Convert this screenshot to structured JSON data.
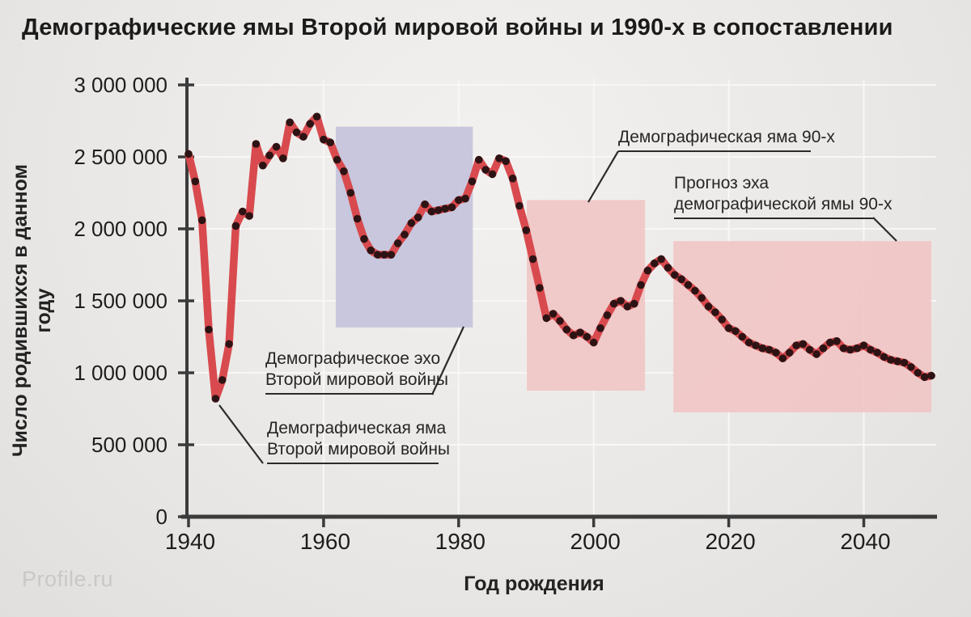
{
  "title": "Демографические ямы Второй мировой войны и 1990-х в сопоставлении",
  "watermark": "Profile.ru",
  "chart_data": {
    "type": "line",
    "title": "Демографические ямы Второй мировой войны и 1990-х в сопоставлении",
    "xlabel": "Год рождения",
    "ylabel": "Число родившихся в данном году",
    "grid": true,
    "legend_position": "none",
    "xlim": [
      1940,
      2050
    ],
    "ylim": [
      0,
      3000000
    ],
    "line_color": "#d84a4e",
    "dot_color": "#2e1314",
    "axis_color": "#3b3b3b",
    "grid_color": "#f8f7f6",
    "x_ticks": [
      {
        "value": 1940,
        "label": "1940"
      },
      {
        "value": 1960,
        "label": "1960"
      },
      {
        "value": 1980,
        "label": "1980"
      },
      {
        "value": 2000,
        "label": "2000"
      },
      {
        "value": 2020,
        "label": "2020"
      },
      {
        "value": 2040,
        "label": "2040"
      }
    ],
    "y_ticks": [
      {
        "value": 0,
        "label": "0"
      },
      {
        "value": 500000,
        "label": "500 000"
      },
      {
        "value": 1000000,
        "label": "1 000 000"
      },
      {
        "value": 1500000,
        "label": "1 500 000"
      },
      {
        "value": 2000000,
        "label": "2 000 000"
      },
      {
        "value": 2500000,
        "label": "2 500 000"
      },
      {
        "value": 3000000,
        "label": "3 000 000"
      }
    ],
    "regions": [
      {
        "name": "echo-wwii-box",
        "x0": 1961.8,
        "x1": 1982.1,
        "y0": 1315000,
        "y1": 2710000,
        "color": "#c4c3db"
      },
      {
        "name": "pit-90s-box",
        "x0": 1990.1,
        "x1": 2007.6,
        "y0": 876000,
        "y1": 2200000,
        "color": "#f0c5c6"
      },
      {
        "name": "forecast-echo-90s-box",
        "x0": 2011.8,
        "x1": 2050.0,
        "y0": 725000,
        "y1": 1915000,
        "color": "#f0c5c6"
      }
    ],
    "annotations": [
      {
        "id": "echo_wwii",
        "line1": "Демографическое эхо",
        "line2": "Второй мировой войны",
        "leader": [
          [
            534,
            488
          ],
          [
            573,
            404
          ]
        ]
      },
      {
        "id": "pit_wwii",
        "line1": "Демографическая яма",
        "line2": "Второй мировой войны",
        "leader": [
          [
            325,
            573
          ],
          [
            271,
            501
          ]
        ]
      },
      {
        "id": "pit_90s",
        "line1": "Демографическая яма 90-х",
        "line2": "",
        "leader": [
          [
            764,
            187
          ],
          [
            727,
            250
          ]
        ]
      },
      {
        "id": "forecast_90s",
        "line1": "Прогноз эха",
        "line2": "демографической ямы 90-х",
        "leader": [
          [
            1079,
            269
          ],
          [
            1108,
            298
          ]
        ]
      }
    ],
    "x": [
      1940,
      1941,
      1942,
      1943,
      1944,
      1945,
      1946,
      1947,
      1948,
      1949,
      1950,
      1951,
      1952,
      1953,
      1954,
      1955,
      1956,
      1957,
      1958,
      1959,
      1960,
      1961,
      1962,
      1963,
      1964,
      1965,
      1966,
      1967,
      1968,
      1969,
      1970,
      1971,
      1972,
      1973,
      1974,
      1975,
      1976,
      1977,
      1978,
      1979,
      1980,
      1981,
      1982,
      1983,
      1984,
      1985,
      1986,
      1987,
      1988,
      1989,
      1990,
      1991,
      1992,
      1993,
      1994,
      1995,
      1996,
      1997,
      1998,
      1999,
      2000,
      2001,
      2002,
      2003,
      2004,
      2005,
      2006,
      2007,
      2008,
      2009,
      2010,
      2011,
      2012,
      2013,
      2014,
      2015,
      2016,
      2017,
      2018,
      2019,
      2020,
      2021,
      2022,
      2023,
      2024,
      2025,
      2026,
      2027,
      2028,
      2029,
      2030,
      2031,
      2032,
      2033,
      2034,
      2035,
      2036,
      2037,
      2038,
      2039,
      2040,
      2041,
      2042,
      2043,
      2044,
      2045,
      2046,
      2047,
      2048,
      2049,
      2050
    ],
    "values": [
      2520000,
      2330000,
      2060000,
      1300000,
      820000,
      950000,
      1200000,
      2020000,
      2120000,
      2090000,
      2590000,
      2440000,
      2510000,
      2570000,
      2490000,
      2740000,
      2670000,
      2640000,
      2730000,
      2780000,
      2620000,
      2600000,
      2480000,
      2400000,
      2250000,
      2070000,
      1930000,
      1850000,
      1820000,
      1820000,
      1820000,
      1900000,
      1960000,
      2040000,
      2080000,
      2170000,
      2120000,
      2130000,
      2140000,
      2150000,
      2200000,
      2210000,
      2330000,
      2480000,
      2410000,
      2380000,
      2490000,
      2470000,
      2350000,
      2160000,
      1990000,
      1790000,
      1590000,
      1380000,
      1410000,
      1360000,
      1300000,
      1260000,
      1280000,
      1250000,
      1210000,
      1310000,
      1400000,
      1480000,
      1500000,
      1460000,
      1480000,
      1610000,
      1710000,
      1760000,
      1790000,
      1730000,
      1680000,
      1650000,
      1610000,
      1570000,
      1520000,
      1460000,
      1420000,
      1370000,
      1310000,
      1290000,
      1250000,
      1210000,
      1190000,
      1170000,
      1160000,
      1140000,
      1100000,
      1140000,
      1190000,
      1200000,
      1160000,
      1130000,
      1170000,
      1210000,
      1220000,
      1170000,
      1160000,
      1170000,
      1190000,
      1160000,
      1140000,
      1110000,
      1090000,
      1080000,
      1070000,
      1040000,
      1000000,
      970000,
      980000
    ]
  }
}
